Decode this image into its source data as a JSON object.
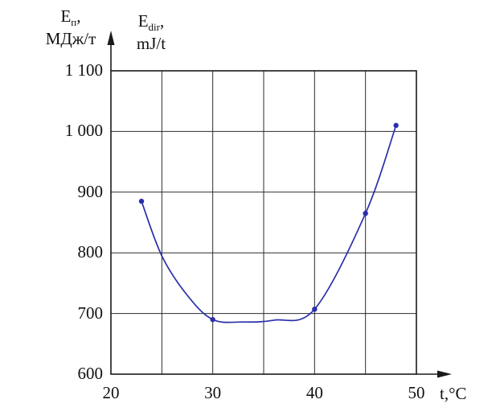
{
  "labels": {
    "y1_base": "E",
    "y1_sub": "п",
    "y1_after": ",",
    "y1_unit": "МДж/т",
    "y2_base": "E",
    "y2_sub": "dir",
    "y2_after": ",",
    "y2_unit": "mJ/t",
    "x_axis": "t,°C"
  },
  "chart_data": {
    "type": "line",
    "title": "",
    "xlabel": "t,°C",
    "ylabel_primary": "Eп, МДж/т",
    "ylabel_secondary": "Edir, mJ/t",
    "xlim": [
      20,
      50
    ],
    "ylim": [
      600,
      1100
    ],
    "x_grid_step": 5,
    "y_grid_step": 100,
    "grid": true,
    "legend": false,
    "line_color": "#2a2fa8",
    "axis_color": "#1a1a1a",
    "grid_color": "#2b2b2b",
    "x_ticks": [
      {
        "value": 20,
        "label": "20"
      },
      {
        "value": 30,
        "label": "30"
      },
      {
        "value": 40,
        "label": "40"
      },
      {
        "value": 50,
        "label": "50"
      }
    ],
    "y_ticks": [
      {
        "value": 600,
        "label": "600"
      },
      {
        "value": 700,
        "label": "700"
      },
      {
        "value": 800,
        "label": "800"
      },
      {
        "value": 900,
        "label": "900"
      },
      {
        "value": 1000,
        "label": "1 000"
      },
      {
        "value": 1100,
        "label": "1 100"
      }
    ],
    "series": [
      {
        "name": "specific-energy-vs-temperature",
        "points": [
          [
            23,
            885
          ],
          [
            25,
            795
          ],
          [
            27.5,
            730
          ],
          [
            30,
            690
          ],
          [
            33,
            686
          ],
          [
            36,
            689
          ],
          [
            40,
            707
          ],
          [
            45,
            865
          ],
          [
            48,
            1010
          ]
        ],
        "markers": [
          [
            23,
            885
          ],
          [
            30,
            690
          ],
          [
            40,
            707
          ],
          [
            45,
            865
          ],
          [
            48,
            1010
          ]
        ]
      }
    ]
  }
}
